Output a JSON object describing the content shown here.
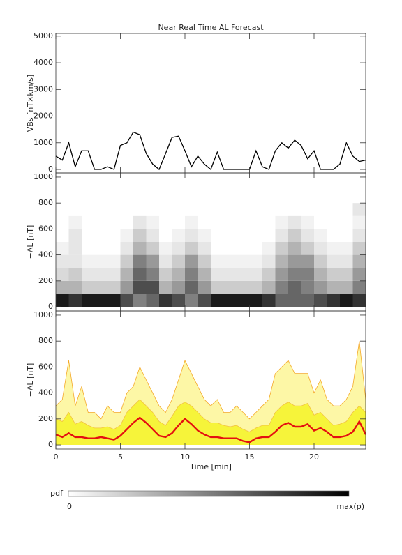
{
  "chart_data": [
    {
      "type": "line",
      "title": "Near Real Time AL Forecast",
      "ylabel": "VBs [nT×km/s]",
      "color": "#000000",
      "xlim": [
        0,
        24
      ],
      "xticks": [
        0,
        5,
        10,
        15,
        20
      ],
      "ylim": [
        -130,
        5100
      ],
      "yticks": [
        0,
        1000,
        2000,
        3000,
        4000,
        5000
      ],
      "x": [
        0,
        0.5,
        1,
        1.5,
        2,
        2.5,
        3,
        3.5,
        4,
        4.5,
        5,
        5.5,
        6,
        6.5,
        7,
        7.5,
        8,
        8.5,
        9,
        9.5,
        10,
        10.5,
        11,
        11.5,
        12,
        12.5,
        13,
        13.5,
        14,
        14.5,
        15,
        15.5,
        16,
        16.5,
        17,
        17.5,
        18,
        18.5,
        19,
        19.5,
        20,
        20.5,
        21,
        21.5,
        22,
        22.5,
        23,
        23.5,
        24
      ],
      "values": [
        500,
        350,
        1000,
        100,
        700,
        700,
        0,
        0,
        100,
        0,
        900,
        1000,
        1400,
        1300,
        600,
        200,
        0,
        600,
        1200,
        1250,
        700,
        100,
        500,
        200,
        0,
        650,
        0,
        0,
        0,
        0,
        0,
        700,
        100,
        0,
        700,
        1000,
        800,
        1100,
        900,
        400,
        700,
        0,
        0,
        0,
        200,
        1000,
        500,
        300,
        350
      ]
    },
    {
      "type": "heatmap",
      "ylabel": "−AL [nT]",
      "colormap": [
        "#ffffff",
        "#000000"
      ],
      "zlim": [
        0,
        1
      ],
      "xlim": [
        0,
        24
      ],
      "xticks": [
        0,
        5,
        10,
        15,
        20
      ],
      "ylim": [
        -32,
        1032
      ],
      "yticks": [
        0,
        200,
        400,
        600,
        800,
        1000
      ],
      "x_edges": [
        0,
        1,
        2,
        3,
        4,
        5,
        6,
        7,
        8,
        9,
        10,
        11,
        12,
        13,
        14,
        15,
        16,
        17,
        18,
        19,
        20,
        21,
        22,
        23,
        24
      ],
      "y_edges": [
        0,
        100,
        200,
        300,
        400,
        500,
        600,
        700,
        800
      ],
      "z": [
        [
          0.9,
          0.8,
          0.9,
          0.9,
          0.9,
          0.7,
          0.5,
          0.6,
          0.8,
          0.7,
          0.5,
          0.7,
          0.9,
          0.9,
          0.9,
          0.9,
          0.8,
          0.6,
          0.6,
          0.6,
          0.7,
          0.8,
          0.9,
          0.8
        ],
        [
          0.3,
          0.3,
          0.2,
          0.2,
          0.2,
          0.4,
          0.7,
          0.7,
          0.3,
          0.4,
          0.6,
          0.4,
          0.2,
          0.2,
          0.2,
          0.2,
          0.3,
          0.5,
          0.6,
          0.5,
          0.4,
          0.3,
          0.3,
          0.5
        ],
        [
          0.15,
          0.2,
          0.1,
          0.1,
          0.1,
          0.3,
          0.6,
          0.5,
          0.2,
          0.3,
          0.5,
          0.3,
          0.1,
          0.1,
          0.1,
          0.1,
          0.2,
          0.4,
          0.5,
          0.5,
          0.3,
          0.2,
          0.2,
          0.4
        ],
        [
          0.1,
          0.1,
          0.05,
          0.05,
          0.05,
          0.2,
          0.5,
          0.4,
          0.1,
          0.2,
          0.4,
          0.2,
          0.05,
          0.05,
          0.05,
          0.05,
          0.1,
          0.3,
          0.4,
          0.4,
          0.2,
          0.1,
          0.1,
          0.3
        ],
        [
          0.05,
          0.1,
          0,
          0,
          0,
          0.1,
          0.3,
          0.2,
          0.05,
          0.1,
          0.2,
          0.1,
          0,
          0,
          0,
          0,
          0.05,
          0.2,
          0.3,
          0.2,
          0.1,
          0.05,
          0.05,
          0.2
        ],
        [
          0,
          0.1,
          0,
          0,
          0,
          0.05,
          0.2,
          0.1,
          0,
          0.05,
          0.1,
          0.05,
          0,
          0,
          0,
          0,
          0,
          0.1,
          0.2,
          0.1,
          0.05,
          0,
          0,
          0.1
        ],
        [
          0,
          0.05,
          0,
          0,
          0,
          0,
          0.1,
          0.05,
          0,
          0,
          0.05,
          0,
          0,
          0,
          0,
          0,
          0,
          0.05,
          0.1,
          0.05,
          0,
          0,
          0,
          0.05
        ],
        [
          0,
          0,
          0,
          0,
          0,
          0,
          0,
          0,
          0,
          0,
          0,
          0,
          0,
          0,
          0,
          0,
          0,
          0,
          0,
          0,
          0,
          0,
          0,
          0.1
        ]
      ],
      "colorbar": {
        "label": "pdf",
        "min_label": "0",
        "max_label": "max(p)"
      }
    },
    {
      "type": "area",
      "ylabel": "−AL [nT]",
      "xlabel": "Time [min]",
      "xlim": [
        0,
        24
      ],
      "xticks": [
        0,
        5,
        10,
        15,
        20
      ],
      "ylim": [
        -32,
        1032
      ],
      "yticks": [
        0,
        200,
        400,
        600,
        800,
        1000
      ],
      "x": [
        0,
        0.5,
        1,
        1.5,
        2,
        2.5,
        3,
        3.5,
        4,
        4.5,
        5,
        5.5,
        6,
        6.5,
        7,
        7.5,
        8,
        8.5,
        9,
        9.5,
        10,
        10.5,
        11,
        11.5,
        12,
        12.5,
        13,
        13.5,
        14,
        14.5,
        15,
        15.5,
        16,
        16.5,
        17,
        17.5,
        18,
        18.5,
        19,
        19.5,
        20,
        20.5,
        21,
        21.5,
        22,
        22.5,
        23,
        23.5,
        24
      ],
      "series": [
        {
          "color": "#f4a828",
          "fill": "#fdf7a6",
          "values": [
            300,
            350,
            650,
            300,
            450,
            250,
            250,
            200,
            300,
            250,
            250,
            400,
            450,
            600,
            500,
            400,
            300,
            250,
            350,
            500,
            650,
            550,
            450,
            350,
            300,
            350,
            250,
            250,
            300,
            250,
            200,
            250,
            300,
            350,
            550,
            600,
            650,
            550,
            550,
            550,
            400,
            500,
            350,
            300,
            300,
            350,
            450,
            800,
            350
          ]
        },
        {
          "color": "#f2c040",
          "fill": "#f6f43a",
          "values": [
            200,
            180,
            250,
            160,
            180,
            150,
            130,
            130,
            140,
            120,
            150,
            250,
            300,
            350,
            300,
            250,
            180,
            150,
            220,
            300,
            330,
            300,
            250,
            200,
            170,
            170,
            150,
            140,
            150,
            120,
            100,
            130,
            150,
            150,
            250,
            300,
            330,
            300,
            300,
            320,
            230,
            250,
            200,
            150,
            160,
            180,
            250,
            300,
            250
          ]
        },
        {
          "color": "#e41010",
          "values": [
            80,
            60,
            90,
            60,
            60,
            50,
            50,
            60,
            50,
            40,
            70,
            120,
            170,
            210,
            170,
            120,
            70,
            60,
            90,
            150,
            200,
            160,
            110,
            80,
            60,
            60,
            50,
            50,
            50,
            30,
            20,
            50,
            60,
            60,
            100,
            150,
            170,
            140,
            140,
            160,
            110,
            130,
            100,
            60,
            60,
            70,
            100,
            180,
            80
          ]
        }
      ]
    }
  ]
}
